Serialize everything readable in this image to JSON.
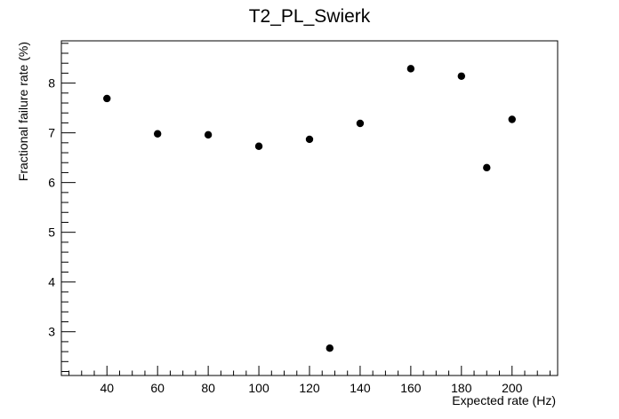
{
  "chart_data": {
    "type": "scatter",
    "title": "T2_PL_Swierk",
    "xlabel": "Expected rate (Hz)",
    "ylabel": "Fractional failure rate (%)",
    "xlim": [
      22,
      218
    ],
    "ylim": [
      2.12,
      8.85
    ],
    "x_ticks": [
      40,
      60,
      80,
      100,
      120,
      140,
      160,
      180,
      200
    ],
    "y_ticks": [
      3,
      4,
      5,
      6,
      7,
      8
    ],
    "grid": false,
    "legend": "none",
    "marker_color": "#000000",
    "points": [
      {
        "x": 40,
        "y": 7.69
      },
      {
        "x": 60,
        "y": 6.98
      },
      {
        "x": 80,
        "y": 6.96
      },
      {
        "x": 100,
        "y": 6.73
      },
      {
        "x": 120,
        "y": 6.87
      },
      {
        "x": 128,
        "y": 2.67
      },
      {
        "x": 140,
        "y": 7.19
      },
      {
        "x": 160,
        "y": 8.29
      },
      {
        "x": 180,
        "y": 8.14
      },
      {
        "x": 190,
        "y": 6.3
      },
      {
        "x": 200,
        "y": 7.27
      }
    ]
  }
}
